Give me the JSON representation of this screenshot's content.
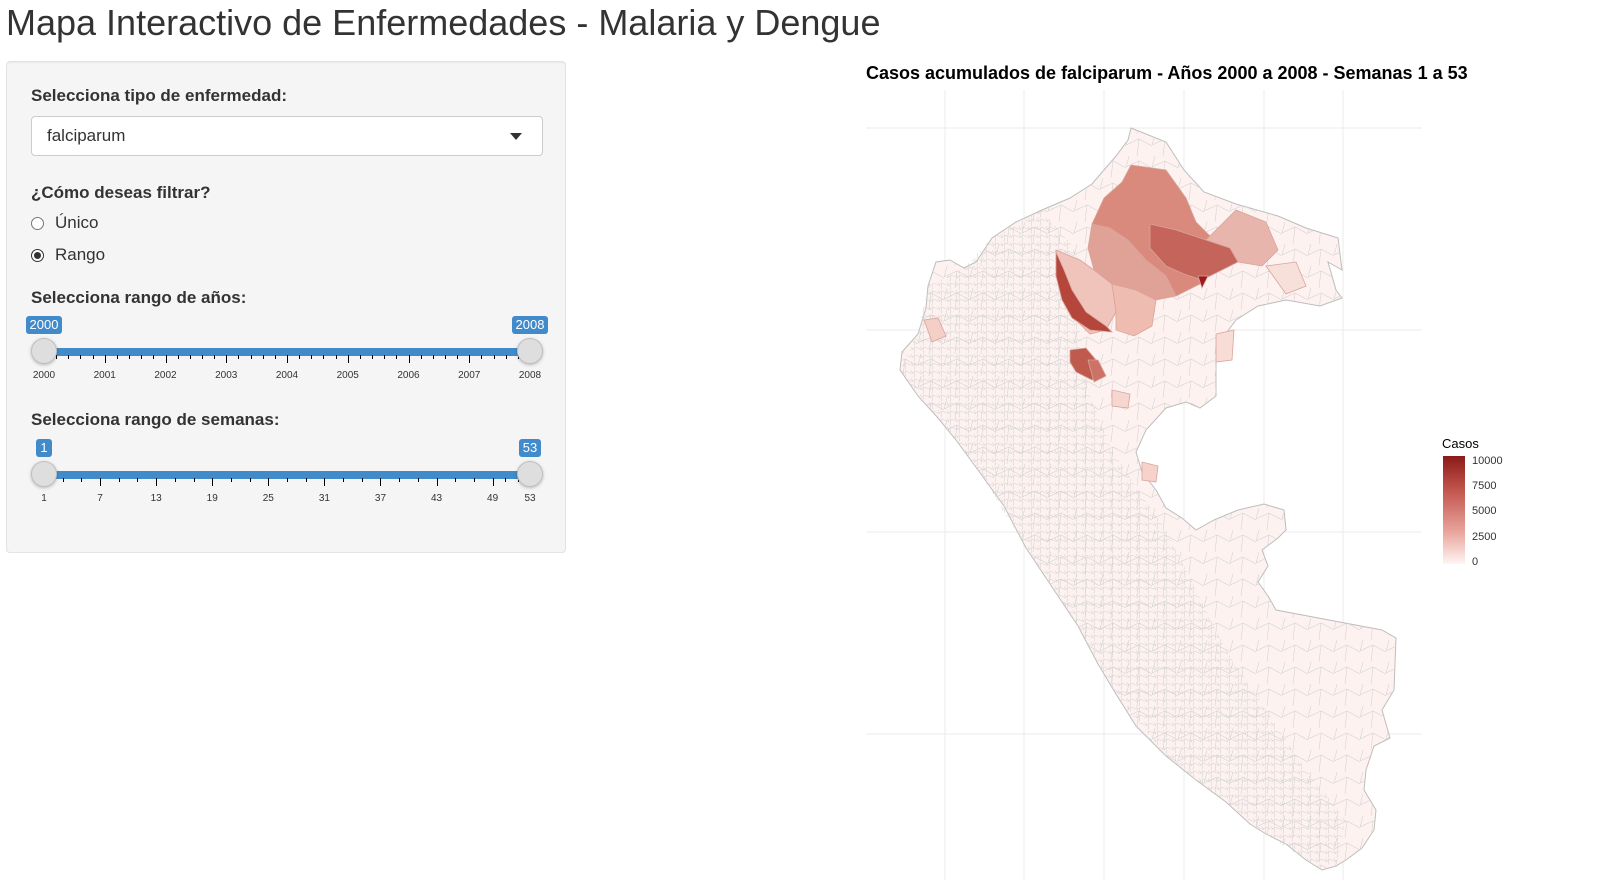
{
  "app": {
    "title": "Mapa Interactivo de Enfermedades - Malaria y Dengue"
  },
  "sidebar": {
    "disease_label": "Selecciona tipo de enfermedad:",
    "disease_value": "falciparum",
    "filter_label": "¿Cómo deseas filtrar?",
    "filter_options": [
      {
        "label": "Único",
        "checked": false
      },
      {
        "label": "Rango",
        "checked": true
      }
    ],
    "years": {
      "label": "Selecciona rango de años:",
      "min": 2000,
      "max": 2008,
      "from": 2000,
      "to": 2008,
      "from_label": "2000",
      "to_label": "2008",
      "ticks": [
        "2000",
        "2001",
        "2002",
        "2003",
        "2004",
        "2005",
        "2006",
        "2007",
        "2008"
      ]
    },
    "weeks": {
      "label": "Selecciona rango de semanas:",
      "min": 1,
      "max": 53,
      "from": 1,
      "to": 53,
      "from_label": "1",
      "to_label": "53",
      "ticks": [
        "1",
        "7",
        "13",
        "19",
        "25",
        "31",
        "37",
        "43",
        "49",
        "53"
      ]
    }
  },
  "map": {
    "title": "Casos acumulados de falciparum - Años 2000 a 2008 - Semanas 1 a 53",
    "legend_title": "Casos",
    "legend_labels": [
      "10000",
      "7500",
      "5000",
      "2500",
      "0"
    ],
    "colors": {
      "max": "#8b1a1a",
      "high": "#c0524a",
      "mid": "#e8a49c",
      "low": "#fbe9e5",
      "none": "#fff5f3",
      "border": "#c9c9c9"
    }
  }
}
